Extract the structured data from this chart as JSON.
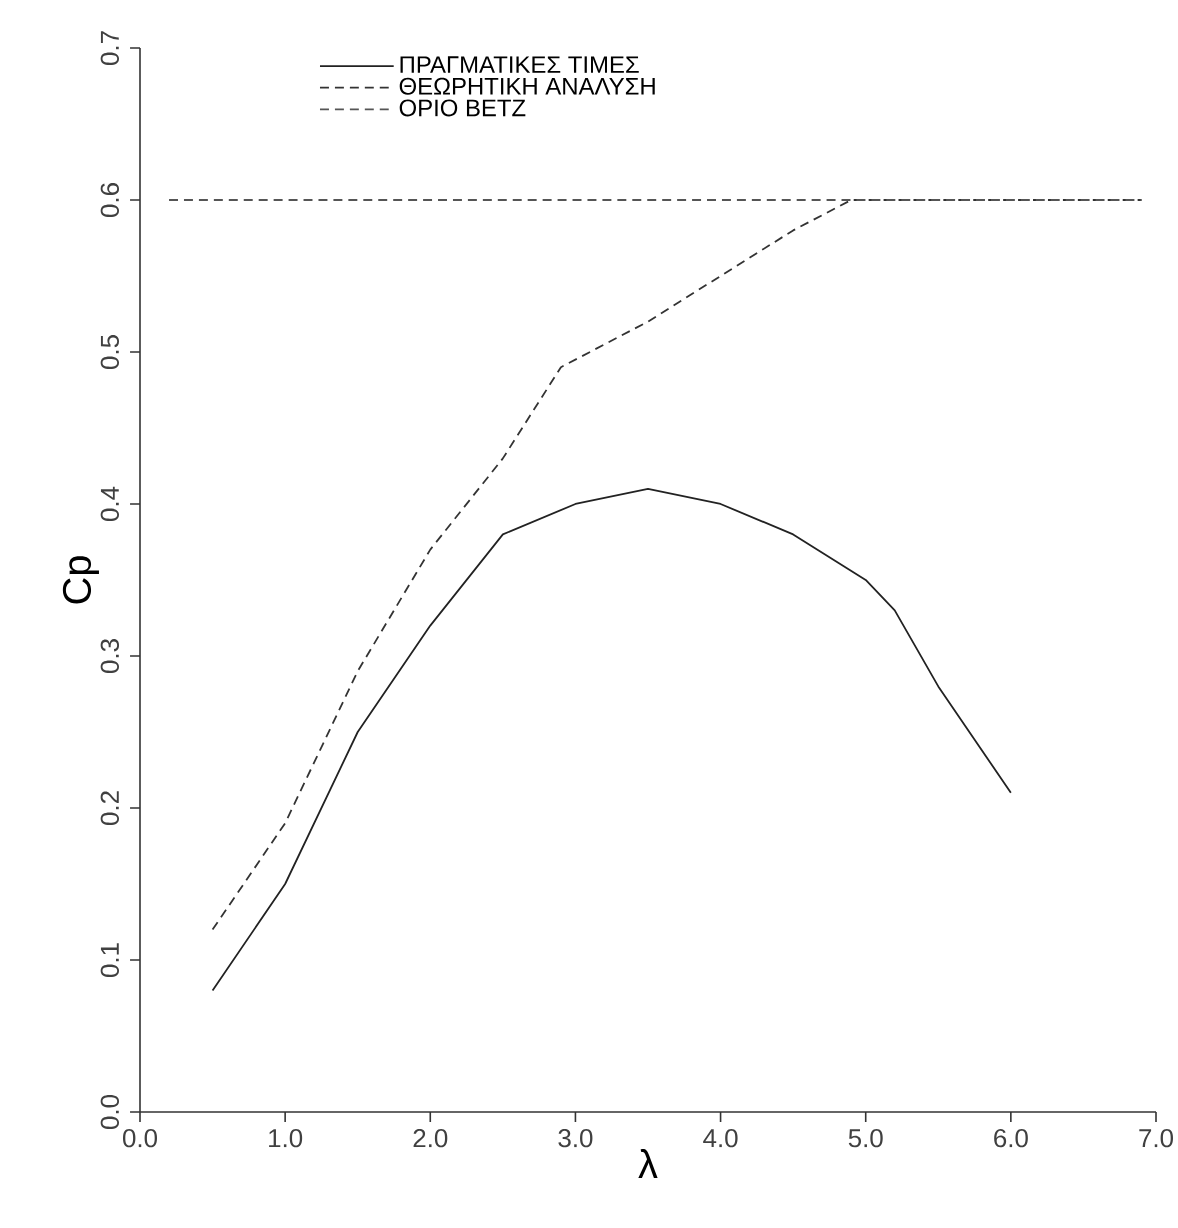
{
  "chart_data": {
    "type": "line",
    "xlabel": "λ",
    "ylabel": "Cp",
    "xlim": [
      0,
      7
    ],
    "ylim": [
      0,
      0.7
    ],
    "xticks": [
      {
        "value": 0,
        "label": "0.0"
      },
      {
        "value": 1,
        "label": "1.0"
      },
      {
        "value": 2,
        "label": "2.0"
      },
      {
        "value": 3,
        "label": "3.0"
      },
      {
        "value": 4,
        "label": "4.0"
      },
      {
        "value": 5,
        "label": "5.0"
      },
      {
        "value": 6,
        "label": "6.0"
      },
      {
        "value": 7,
        "label": "7.0"
      }
    ],
    "yticks": [
      {
        "value": 0,
        "label": "0.0"
      },
      {
        "value": 0.1,
        "label": "0.1"
      },
      {
        "value": 0.2,
        "label": "0.2"
      },
      {
        "value": 0.3,
        "label": "0.3"
      },
      {
        "value": 0.4,
        "label": "0.4"
      },
      {
        "value": 0.5,
        "label": "0.5"
      },
      {
        "value": 0.6,
        "label": "0.6"
      },
      {
        "value": 0.7,
        "label": "0.7"
      }
    ],
    "legend": "top left",
    "grid": false,
    "marker": "none",
    "series": [
      {
        "name": "ΠΡΑΓΜΑΤΙΚΕΣ  ΤΙΜΕΣ",
        "color": "#222222",
        "line_style": "solid",
        "x": [
          0.5,
          1.0,
          1.5,
          2.0,
          2.5,
          3.0,
          3.5,
          4.0,
          4.5,
          5.0,
          5.2,
          5.5,
          6.0
        ],
        "values": [
          0.08,
          0.15,
          0.25,
          0.32,
          0.38,
          0.4,
          0.41,
          0.4,
          0.38,
          0.35,
          0.33,
          0.28,
          0.21
        ]
      },
      {
        "name": "ΘΕΩΡΗΤΙΚΗ  ΑΝΑΛΥΣΗ",
        "color": "#333333",
        "line_style": "dashed",
        "x": [
          0.5,
          1.0,
          1.5,
          2.0,
          2.5,
          2.9,
          3.5,
          4.0,
          4.5,
          4.9,
          5.5,
          6.9
        ],
        "values": [
          0.12,
          0.19,
          0.29,
          0.37,
          0.43,
          0.49,
          0.52,
          0.55,
          0.58,
          0.6,
          0.6,
          0.6
        ]
      },
      {
        "name": "ΟΡΙΟ  BETZ",
        "color": "#555555",
        "line_style": "dashed",
        "x": [
          0.2,
          6.9
        ],
        "values": [
          0.6,
          0.6
        ]
      }
    ]
  }
}
